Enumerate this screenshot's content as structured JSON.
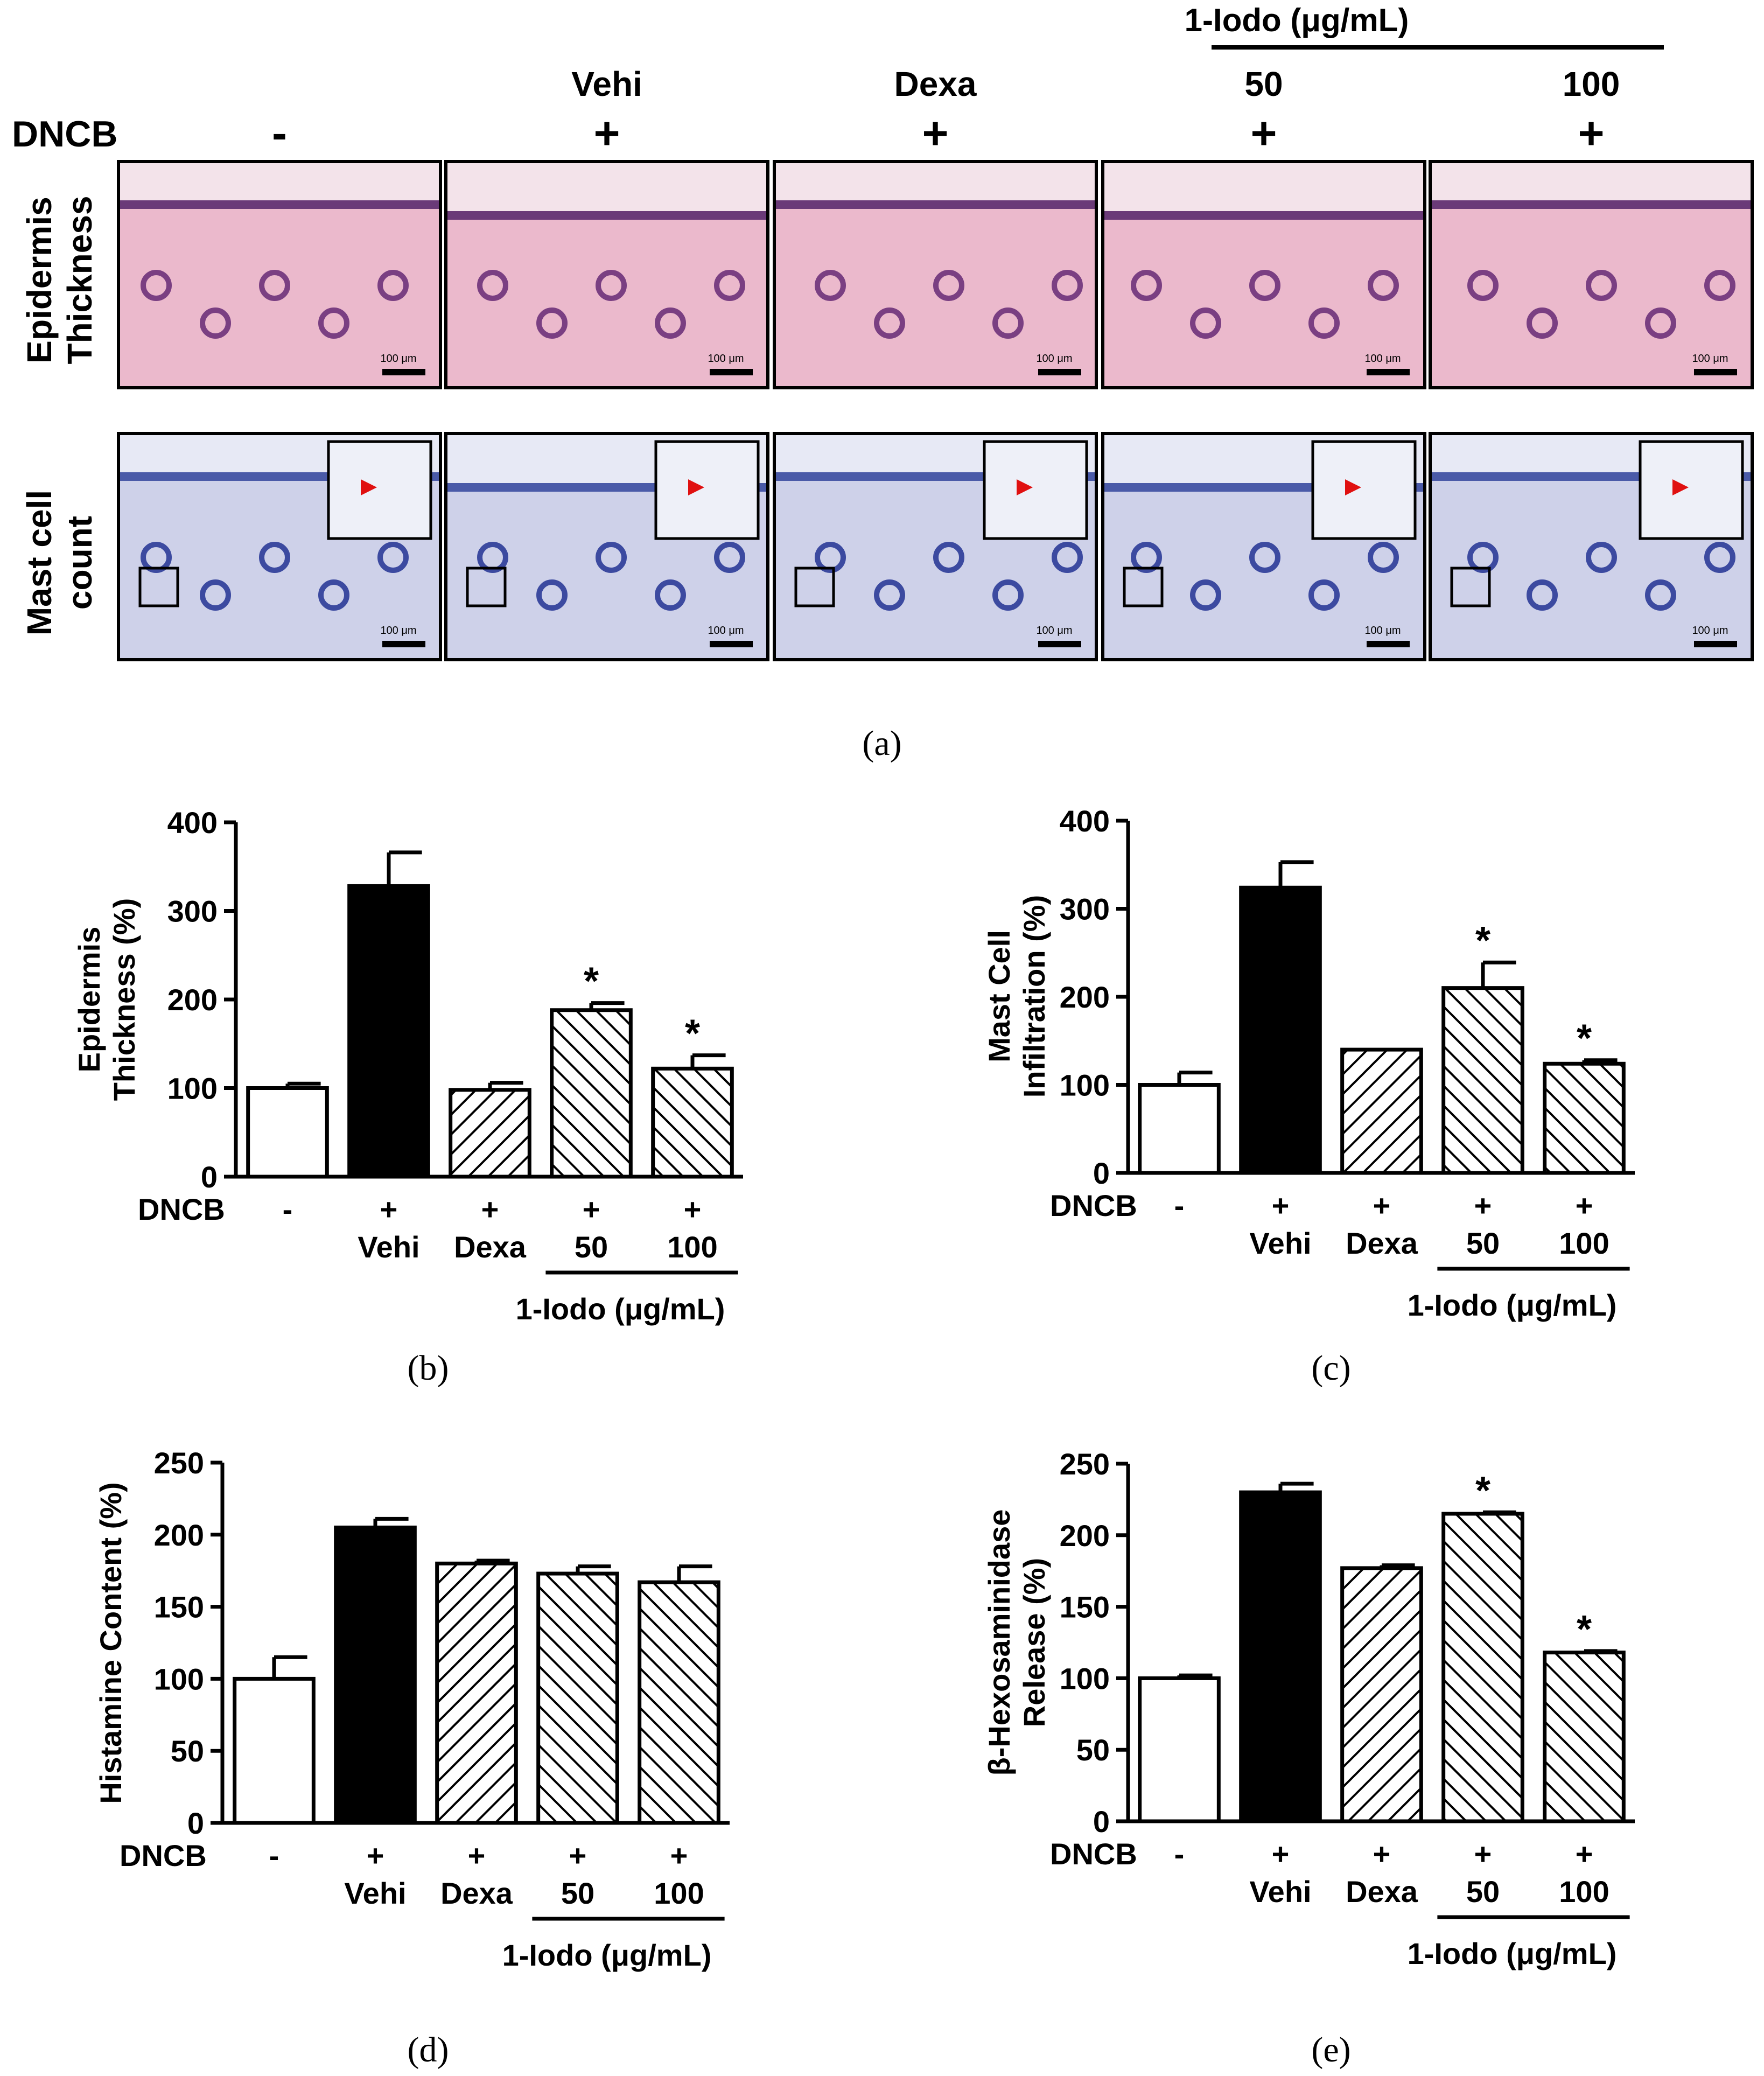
{
  "panel_a": {
    "label": "(a)",
    "dncb_label": "DNCB",
    "treatment_title": "1-Iodo (μg/mL)",
    "row_labels": [
      [
        "Epidermis",
        "Thickness"
      ],
      [
        "Mast cell",
        "count"
      ]
    ],
    "columns": [
      {
        "top": "",
        "dncb": "-"
      },
      {
        "top": "Vehi",
        "dncb": "+"
      },
      {
        "top": "Dexa",
        "dncb": "+"
      },
      {
        "top": "50",
        "dncb": "+"
      },
      {
        "top": "100",
        "dncb": "+"
      }
    ],
    "scale_bar_text": "100 μm",
    "colors": {
      "he_stain": "#e8aec4",
      "tb_stain": "#c8cbe6",
      "mast_arrow": "#e01010"
    }
  },
  "chart_data": [
    {
      "panel": "(b)",
      "type": "bar",
      "ylabel": [
        "Epidermis",
        "Thickness (%)"
      ],
      "ylim": [
        0,
        400
      ],
      "yticks": [
        0,
        100,
        200,
        300,
        400
      ],
      "categories": [
        "-",
        "+",
        "+",
        "+",
        "+"
      ],
      "dncb_label": "DNCB",
      "group_labels": [
        "",
        "Vehi",
        "Dexa",
        "50",
        "100"
      ],
      "bracket_label": "1-Iodo (μg/mL)",
      "values": [
        100,
        328,
        98,
        188,
        122
      ],
      "errors": [
        5,
        38,
        8,
        8,
        15
      ],
      "significance": [
        "",
        "",
        "",
        "*",
        "*"
      ],
      "fills": [
        "white",
        "black",
        "hatch-fwd",
        "hatch-back",
        "hatch-back"
      ]
    },
    {
      "panel": "(c)",
      "type": "bar",
      "ylabel": [
        "Mast Cell",
        "Infiltration (%)"
      ],
      "ylim": [
        0,
        400
      ],
      "yticks": [
        0,
        100,
        200,
        300,
        400
      ],
      "categories": [
        "-",
        "+",
        "+",
        "+",
        "+"
      ],
      "dncb_label": "DNCB",
      "group_labels": [
        "",
        "Vehi",
        "Dexa",
        "50",
        "100"
      ],
      "bracket_label": "1-Iodo (μg/mL)",
      "values": [
        100,
        324,
        140,
        210,
        124
      ],
      "errors": [
        14,
        29,
        0,
        29,
        4
      ],
      "significance": [
        "",
        "",
        "",
        "*",
        "*"
      ],
      "fills": [
        "white",
        "black",
        "hatch-fwd",
        "hatch-back",
        "hatch-back"
      ]
    },
    {
      "panel": "(d)",
      "type": "bar",
      "ylabel": [
        "Histamine Content (%)"
      ],
      "ylim": [
        0,
        250
      ],
      "yticks": [
        0,
        50,
        100,
        150,
        200,
        250
      ],
      "categories": [
        "-",
        "+",
        "+",
        "+",
        "+"
      ],
      "dncb_label": "DNCB",
      "group_labels": [
        "",
        "Vehi",
        "Dexa",
        "50",
        "100"
      ],
      "bracket_label": "1-Iodo (μg/mL)",
      "values": [
        100,
        205,
        180,
        173,
        167
      ],
      "errors": [
        15,
        6,
        2,
        5,
        11
      ],
      "significance": [
        "",
        "",
        "",
        "",
        ""
      ],
      "fills": [
        "white",
        "black",
        "hatch-fwd",
        "hatch-back",
        "hatch-back"
      ]
    },
    {
      "panel": "(e)",
      "type": "bar",
      "ylabel": [
        "β-Hexosaminidase",
        "Release (%)"
      ],
      "ylim": [
        0,
        250
      ],
      "yticks": [
        0,
        50,
        100,
        150,
        200,
        250
      ],
      "categories": [
        "-",
        "+",
        "+",
        "+",
        "+"
      ],
      "dncb_label": "DNCB",
      "group_labels": [
        "",
        "Vehi",
        "Dexa",
        "50",
        "100"
      ],
      "bracket_label": "1-Iodo (μg/mL)",
      "values": [
        100,
        230,
        177,
        215,
        118
      ],
      "errors": [
        2,
        6,
        2,
        1,
        1
      ],
      "significance": [
        "",
        "",
        "",
        "*",
        "*"
      ],
      "fills": [
        "white",
        "black",
        "hatch-fwd",
        "hatch-back",
        "hatch-back"
      ]
    }
  ]
}
